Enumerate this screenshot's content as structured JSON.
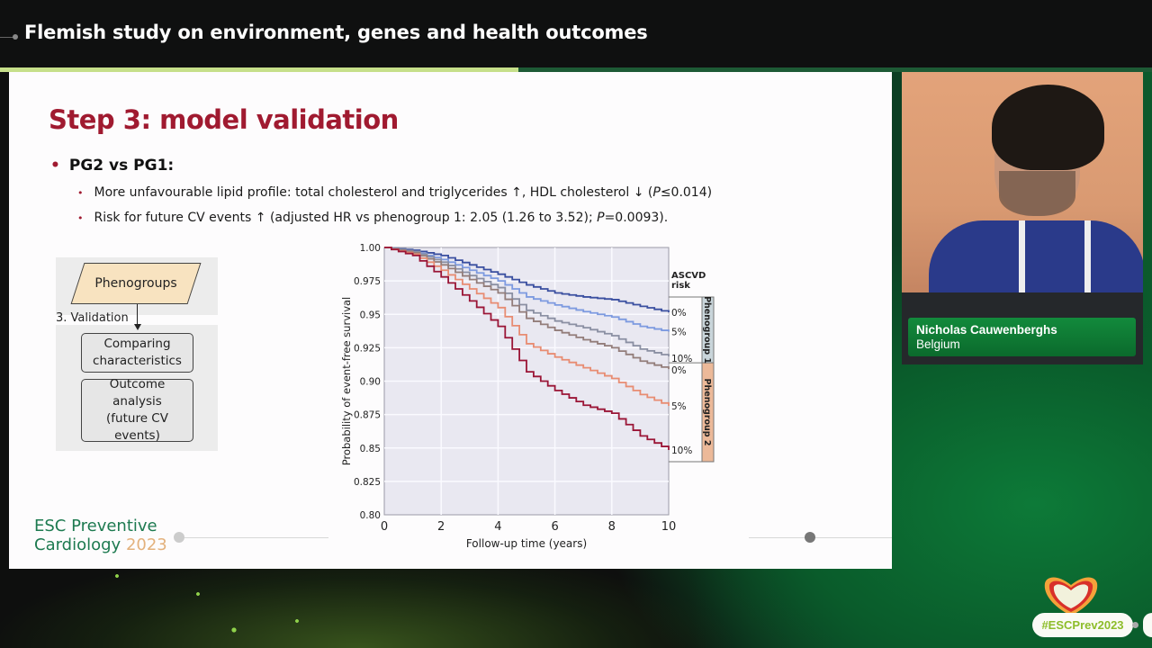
{
  "header": {
    "title": "Flemish study on environment, genes and health outcomes"
  },
  "slide": {
    "title": "Step 3: model validation",
    "bullet_main": "PG2 vs PG1:",
    "sub_bullets": [
      {
        "pre": "More unfavourable lipid profile: total cholesterol and triglycerides ↑, HDL cholesterol ↓ (",
        "italic": "P",
        "post": "≤0.014)"
      },
      {
        "pre": "Risk for future CV events ↑ (adjusted HR vs phenogroup 1: 2.05 (1.26 to 3.52); ",
        "italic": "P",
        "post": "=0.0093)."
      }
    ],
    "bullet_marker": "•",
    "flow": {
      "top_box": "Phenogroups",
      "arrow_label": "3. Validation",
      "box1": "Comparing characteristics",
      "box2_line1": "Outcome",
      "box2_line2": "analysis",
      "box2_line3": "(future CV events)"
    },
    "logo": {
      "line1": "ESC Preventive",
      "line2": "Cardiology",
      "year": "2023"
    }
  },
  "chart_data": {
    "type": "line",
    "subtype": "kaplan-meier step",
    "title": "",
    "xlabel": "Follow-up time (years)",
    "ylabel": "Probability of event-free survival",
    "xlim": [
      0,
      10
    ],
    "ylim": [
      0.8,
      1.0
    ],
    "x_ticks": [
      "0",
      "2",
      "4",
      "6",
      "8",
      "10"
    ],
    "y_ticks": [
      "1.00",
      "0.975",
      "0.95",
      "0.925",
      "0.90",
      "0.875",
      "0.85",
      "0.825",
      "0.80"
    ],
    "grid": true,
    "legend_title": "ASCVD risk",
    "groups": [
      {
        "name": "Phenogroup 1",
        "color": "#c9d5da"
      },
      {
        "name": "Phenogroup 2",
        "color": "#ecb999"
      }
    ],
    "x": [
      0,
      1,
      2,
      3,
      4,
      5,
      6,
      7,
      8,
      9,
      10
    ],
    "series": [
      {
        "name": "Phenogroup 1 - 0%",
        "label": "0%",
        "color": "#3a4fa0",
        "values": [
          1.0,
          0.998,
          0.994,
          0.987,
          0.98,
          0.972,
          0.966,
          0.963,
          0.961,
          0.956,
          0.9515
        ]
      },
      {
        "name": "Phenogroup 1 - 5%",
        "label": "5%",
        "color": "#7d9ae0",
        "values": [
          1.0,
          0.997,
          0.991,
          0.983,
          0.975,
          0.963,
          0.957,
          0.952,
          0.948,
          0.941,
          0.937
        ]
      },
      {
        "name": "Phenogroup 1 - 10%",
        "label": "10%",
        "color": "#8a8fa2",
        "values": [
          1.0,
          0.997,
          0.989,
          0.979,
          0.97,
          0.953,
          0.945,
          0.94,
          0.934,
          0.924,
          0.9185
        ]
      },
      {
        "name": "Phenogroup 2 - 0%",
        "label": "0%",
        "color": "#937d7a",
        "values": [
          1.0,
          0.996,
          0.987,
          0.976,
          0.966,
          0.947,
          0.938,
          0.931,
          0.925,
          0.915,
          0.909
        ]
      },
      {
        "name": "Phenogroup 2 - 5%",
        "label": "5%",
        "color": "#e88c72",
        "values": [
          1.0,
          0.995,
          0.983,
          0.969,
          0.955,
          0.928,
          0.918,
          0.91,
          0.902,
          0.89,
          0.8815
        ]
      },
      {
        "name": "Phenogroup 2 - 10%",
        "label": "10%",
        "color": "#9a1536",
        "values": [
          1.0,
          0.994,
          0.978,
          0.96,
          0.941,
          0.907,
          0.893,
          0.882,
          0.876,
          0.859,
          0.8485
        ]
      }
    ]
  },
  "speaker": {
    "name": "Nicholas Cauwenberghs",
    "country": "Belgium"
  },
  "hashtag": "#ESCPrev2023",
  "colors": {
    "title_red": "#a01a30",
    "accent_lime": "#c6df8a",
    "esc_green": "#1d7a50",
    "nameplate_green": "#0b6a2c"
  }
}
